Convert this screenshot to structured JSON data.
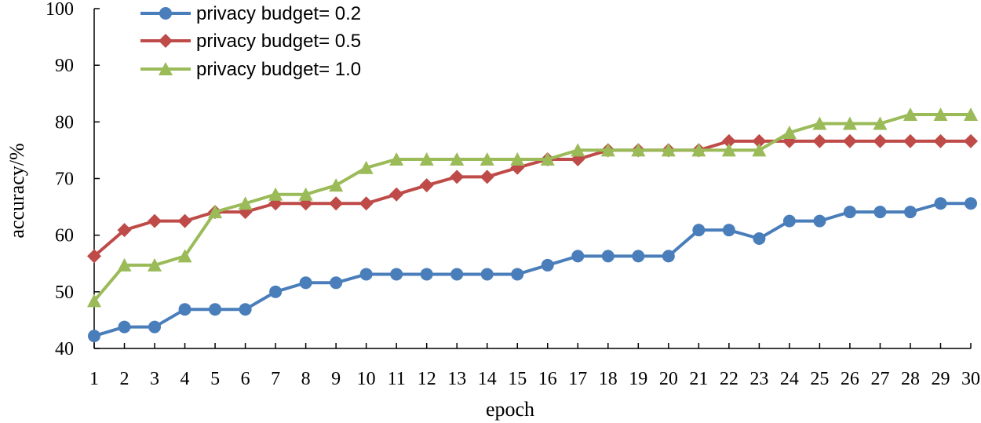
{
  "chart_data": {
    "type": "line",
    "xlabel": "epoch",
    "ylabel": "accuracy/%",
    "ylim": [
      40,
      100
    ],
    "yticks": [
      40,
      50,
      60,
      70,
      80,
      90,
      100
    ],
    "categories": [
      "1",
      "2",
      "3",
      "4",
      "5",
      "6",
      "7",
      "8",
      "9",
      "10",
      "11",
      "12",
      "13",
      "14",
      "15",
      "16",
      "17",
      "18",
      "19",
      "20",
      "21",
      "22",
      "23",
      "24",
      "25",
      "26",
      "27",
      "28",
      "29",
      "30"
    ],
    "grid": false,
    "legend_position": "top-left",
    "series": [
      {
        "name": "privacy budget= 0.2",
        "color": "#4a7ebb",
        "marker": "circle",
        "values": [
          42.2,
          43.8,
          43.8,
          46.9,
          46.9,
          46.9,
          50.0,
          51.6,
          51.6,
          53.1,
          53.1,
          53.1,
          53.1,
          53.1,
          53.1,
          54.7,
          56.3,
          56.3,
          56.3,
          56.3,
          60.9,
          60.9,
          59.4,
          62.5,
          62.5,
          64.1,
          64.1,
          64.1,
          65.6,
          65.6
        ]
      },
      {
        "name": "privacy budget= 0.5",
        "color": "#be4b48",
        "marker": "diamond",
        "values": [
          56.3,
          60.9,
          62.5,
          62.5,
          64.1,
          64.1,
          65.6,
          65.6,
          65.6,
          65.6,
          67.2,
          68.8,
          70.3,
          70.3,
          71.9,
          73.4,
          73.4,
          75.0,
          75.0,
          75.0,
          75.0,
          76.6,
          76.6,
          76.6,
          76.6,
          76.6,
          76.6,
          76.6,
          76.6,
          76.6
        ]
      },
      {
        "name": "privacy budget= 1.0",
        "color": "#9bbb59",
        "marker": "triangle",
        "values": [
          48.4,
          54.7,
          54.7,
          56.3,
          64.1,
          65.6,
          67.2,
          67.2,
          68.8,
          71.9,
          73.4,
          73.4,
          73.4,
          73.4,
          73.4,
          73.4,
          75.0,
          75.0,
          75.0,
          75.0,
          75.0,
          75.0,
          75.0,
          78.1,
          79.7,
          79.7,
          79.7,
          81.3,
          81.3,
          81.3
        ]
      }
    ]
  }
}
